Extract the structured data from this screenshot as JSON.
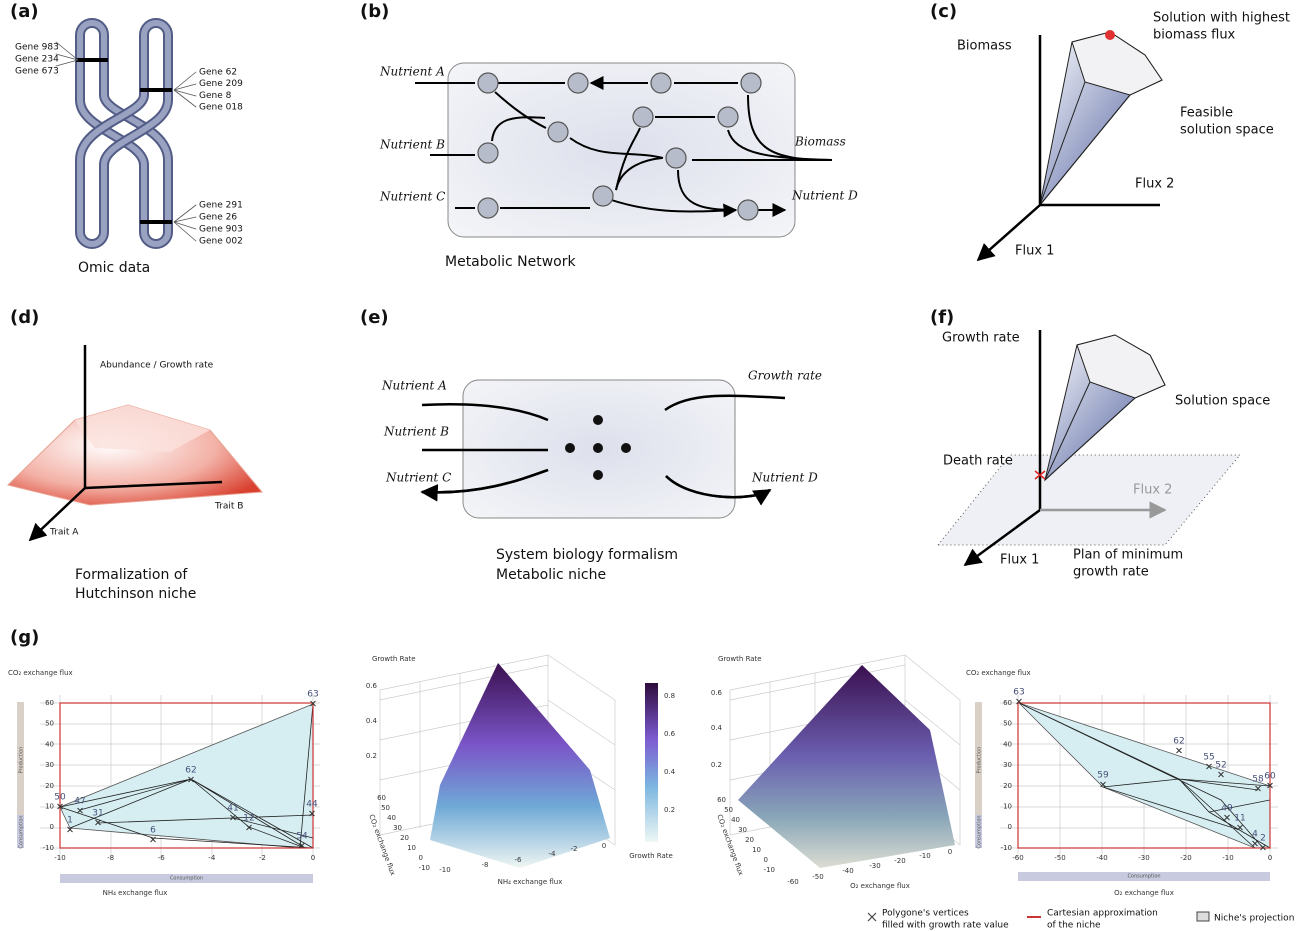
{
  "a": {
    "label": "(a)",
    "genes_left": [
      "Gene 983",
      "Gene 234",
      "Gene 673"
    ],
    "genes_right_top": [
      "Gene 62",
      "Gene 209",
      "Gene 8",
      "Gene 018"
    ],
    "genes_right_bottom": [
      "Gene 291",
      "Gene 26",
      "Gene 903",
      "Gene 002"
    ],
    "caption": "Omic data"
  },
  "b": {
    "label": "(b)",
    "nutrients": [
      "Nutrient A",
      "Nutrient B",
      "Nutrient C"
    ],
    "biomass": "Biomass",
    "nutrient_d": "Nutrient D",
    "caption": "Metabolic Network"
  },
  "c": {
    "label": "(c)",
    "y_axis": "Biomass",
    "x_axis": "Flux 2",
    "z_axis": "Flux 1",
    "optimum": [
      "Solution with highest",
      "biomass flux"
    ],
    "space": [
      "Feasible",
      "solution space"
    ]
  },
  "d": {
    "label": "(d)",
    "y_axis": "Abundance / Growth rate",
    "x_axis": "Trait B",
    "z_axis": "Trait A",
    "caption": [
      "Formalization of",
      "Hutchinson niche"
    ]
  },
  "e": {
    "label": "(e)",
    "nutrients": [
      "Nutrient A",
      "Nutrient B",
      "Nutrient C"
    ],
    "growth": "Growth rate",
    "nutrient_d": "Nutrient D",
    "caption": [
      "System biology formalism",
      "Metabolic niche"
    ]
  },
  "f": {
    "label": "(f)",
    "y_axis": "Growth rate",
    "space": "Solution space",
    "death": "Death rate",
    "x_axis": "Flux 2",
    "z_axis": "Flux 1",
    "plane": [
      "Plan of minimum",
      "growth rate"
    ]
  },
  "g": {
    "label": "(g)",
    "plot1": {
      "y_title": "CO₂ exchange flux",
      "x_title": "NH₄ exchange flux",
      "yticks": [
        60,
        50,
        40,
        30,
        20,
        10,
        0,
        -10
      ],
      "xticks": [
        -10,
        -8,
        -6,
        -4,
        -2,
        0
      ],
      "production": "Production",
      "consumption_y": "Consumption",
      "consumption_x": "Consumption",
      "points": [
        63,
        50,
        47,
        1,
        31,
        62,
        6,
        41,
        12,
        44,
        54
      ]
    },
    "plot2": {
      "z_title": "Growth Rate",
      "zticks": [
        0.2,
        0.4,
        0.6
      ],
      "y_title": "CO₂ exchange flux",
      "yticks": [
        60,
        50,
        40,
        30,
        20,
        10,
        0,
        -10
      ],
      "x_title": "NH₄ exchange flux",
      "xticks": [
        -10,
        -8,
        -6,
        -4,
        -2,
        0
      ]
    },
    "colorbar": {
      "ticks": [
        0.2,
        0.4,
        0.6,
        0.8
      ],
      "title": "Growth Rate"
    },
    "plot3": {
      "z_title": "Growth Rate",
      "zticks": [
        0.2,
        0.4,
        0.6
      ],
      "y_title": "CO₂ exchange flux",
      "yticks": [
        60,
        50,
        40,
        30,
        20,
        10,
        0,
        -10
      ],
      "x_title": "O₂ exchange flux",
      "xticks": [
        -60,
        -50,
        -40,
        -30,
        -20,
        -10,
        0
      ]
    },
    "plot4": {
      "y_title": "CO₂ exchange flux",
      "x_title": "O₂ exchange flux",
      "yticks": [
        60,
        50,
        40,
        30,
        20,
        10,
        0,
        -10
      ],
      "xticks": [
        -60,
        -50,
        -40,
        -30,
        -20,
        -10,
        0
      ],
      "production": "Production",
      "consumption_y": "Consumption",
      "consumption_x": "Consumption",
      "points": [
        63,
        59,
        62,
        55,
        52,
        58,
        60,
        11,
        4,
        2,
        49
      ]
    },
    "legend": {
      "vertices": [
        "Polygone's vertices",
        "filled with growth rate value"
      ],
      "cartesian": [
        "Cartesian approximation",
        "of the niche"
      ],
      "projection": "Niche's projection"
    }
  }
}
